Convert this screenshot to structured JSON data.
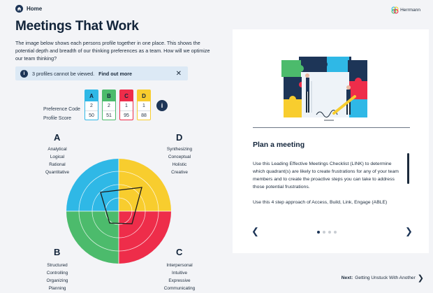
{
  "header": {
    "home_label": "Home",
    "logo_text": "Herrmann"
  },
  "title": "Meetings That Work",
  "intro": "The image below shows each persons profile  together in one place. This shows the potential depth and breadth of our thinking preferences as a team. How will we optimize our team thinking?",
  "alert": {
    "text": "3 profiles cannot be viewed.",
    "link": "Find out more"
  },
  "scores": {
    "labels": [
      "Preference Code",
      "Profile Score"
    ],
    "columns": [
      {
        "letter": "A",
        "code": "2",
        "score": "50",
        "color": "#2fb8e6"
      },
      {
        "letter": "B",
        "code": "2",
        "score": "51",
        "color": "#4cbb6c"
      },
      {
        "letter": "C",
        "code": "1",
        "score": "95",
        "color": "#ee2d4a"
      },
      {
        "letter": "D",
        "code": "1",
        "score": "88",
        "color": "#f8cd2e"
      }
    ]
  },
  "quadrants": {
    "A": {
      "letter": "A",
      "words": [
        "Analytical",
        "Logical",
        "Rational",
        "Quantitative"
      ],
      "color": "#2fb8e6"
    },
    "B": {
      "letter": "B",
      "words": [
        "Structured",
        "Controlling",
        "Organizing",
        "Planning"
      ],
      "color": "#4cbb6c"
    },
    "C": {
      "letter": "C",
      "words": [
        "Interpersonal",
        "Intuitive",
        "Expressive",
        "Communicating"
      ],
      "color": "#ee2d4a"
    },
    "D": {
      "letter": "D",
      "words": [
        "Synthesizing",
        "Conceptual",
        "Holistic",
        "Creative"
      ],
      "color": "#f8cd2e"
    }
  },
  "card": {
    "title": "Plan a meeting",
    "paragraph1": "Use this Leading Effective Meetings Checklist (LINK) to determine which quadrant(s) are likely to create frustrations for any of your team members and to create the proactive steps you can take to address those potential frustrations.",
    "paragraph2": "Use this 4 step approach of Access, Build, Link, Engage (ABLE)",
    "page_current": 1,
    "page_total": 4
  },
  "footer": {
    "next_prefix": "Next:",
    "next_title": "Getting Unstuck With Another"
  }
}
